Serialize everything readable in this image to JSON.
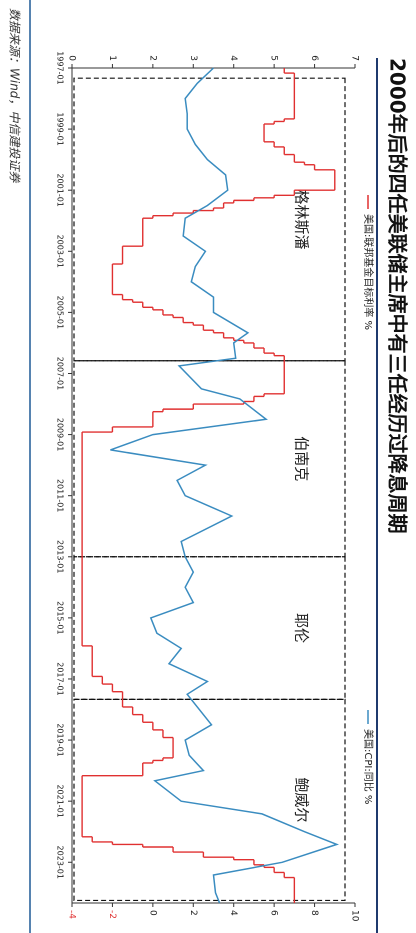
{
  "chart_data": {
    "type": "line",
    "title": "2000年后的四任美联储主席中有三任经历过降息周期",
    "source": "数据来源：Wind，中信建投证券",
    "xlim": [
      "1997-01",
      "2024-05"
    ],
    "xticks": [
      "1997-01",
      "1999-01",
      "2001-01",
      "2003-01",
      "2005-01",
      "2007-01",
      "2009-01",
      "2011-01",
      "2013-01",
      "2015-01",
      "2017-01",
      "2019-01",
      "2021-01",
      "2023-01"
    ],
    "ylim": [
      0,
      7
    ],
    "yticks": [
      0,
      1,
      2,
      3,
      4,
      5,
      6,
      7
    ],
    "y2lim": [
      -4,
      10
    ],
    "y2ticks": [
      -4,
      -2,
      0,
      2,
      4,
      6,
      8,
      10
    ],
    "periods": [
      {
        "name": "格林斯潘",
        "start": "1997-05",
        "end": "2006-08"
      },
      {
        "name": "伯南克",
        "start": "2006-08",
        "end": "2013-01"
      },
      {
        "name": "耶伦",
        "start": "2013-01",
        "end": "2017-09"
      },
      {
        "name": "鲍威尔",
        "start": "2017-09",
        "end": "2024-04"
      }
    ],
    "series": [
      {
        "name": "美国:联邦基金目标利率 %",
        "color": "#e03030",
        "axis": "y",
        "step": true,
        "x": [
          "1997-01",
          "1997-03",
          "1998-09",
          "1998-10",
          "1998-11",
          "1999-06",
          "1999-08",
          "1999-11",
          "2000-02",
          "2000-03",
          "2000-05",
          "2001-01",
          "2001-03",
          "2001-04",
          "2001-05",
          "2001-06",
          "2001-08",
          "2001-09",
          "2001-10",
          "2001-11",
          "2001-12",
          "2002-11",
          "2003-06",
          "2004-06",
          "2004-08",
          "2004-09",
          "2004-11",
          "2004-12",
          "2005-02",
          "2005-03",
          "2005-05",
          "2005-06",
          "2005-08",
          "2005-09",
          "2005-11",
          "2005-12",
          "2006-01",
          "2006-03",
          "2006-05",
          "2006-06",
          "2007-09",
          "2007-10",
          "2007-12",
          "2008-01",
          "2008-03",
          "2008-04",
          "2008-10",
          "2008-12",
          "2015-12",
          "2016-12",
          "2017-03",
          "2017-06",
          "2017-12",
          "2018-03",
          "2018-06",
          "2018-09",
          "2018-12",
          "2019-08",
          "2019-09",
          "2019-10",
          "2020-03",
          "2022-03",
          "2022-05",
          "2022-06",
          "2022-07",
          "2022-09",
          "2022-11",
          "2022-12",
          "2023-02",
          "2023-03",
          "2023-05",
          "2023-07"
        ],
        "values": [
          5.25,
          5.5,
          5.25,
          5.0,
          4.75,
          5.0,
          5.25,
          5.5,
          5.75,
          6.0,
          6.5,
          5.5,
          5.0,
          4.5,
          4.0,
          3.75,
          3.5,
          3.0,
          2.5,
          2.0,
          1.75,
          1.25,
          1.0,
          1.25,
          1.5,
          1.75,
          2.0,
          2.25,
          2.5,
          2.75,
          3.0,
          3.25,
          3.5,
          3.75,
          4.0,
          4.25,
          4.5,
          4.75,
          5.0,
          5.25,
          4.75,
          4.5,
          4.25,
          3.0,
          2.25,
          2.0,
          1.0,
          0.25,
          0.5,
          0.75,
          1.0,
          1.25,
          1.5,
          1.75,
          2.0,
          2.25,
          2.5,
          2.25,
          2.0,
          1.75,
          0.25,
          0.5,
          1.0,
          1.75,
          2.5,
          3.25,
          4.0,
          4.5,
          4.75,
          5.0,
          5.25,
          5.5
        ]
      },
      {
        "name": "美国:CPI:同比 %",
        "color": "#3a8cc0",
        "axis": "y2",
        "step": false,
        "x": [
          "1997-01",
          "1997-07",
          "1998-01",
          "1998-07",
          "1999-01",
          "1999-07",
          "2000-01",
          "2000-07",
          "2001-01",
          "2001-07",
          "2001-12",
          "2002-07",
          "2003-01",
          "2003-07",
          "2004-01",
          "2004-07",
          "2005-01",
          "2005-09",
          "2006-01",
          "2006-07",
          "2006-10",
          "2007-07",
          "2007-11",
          "2008-07",
          "2009-01",
          "2009-07",
          "2010-01",
          "2010-07",
          "2011-01",
          "2011-09",
          "2012-07",
          "2013-01",
          "2013-07",
          "2014-01",
          "2014-07",
          "2015-01",
          "2015-07",
          "2016-01",
          "2016-07",
          "2017-02",
          "2017-07",
          "2018-07",
          "2019-01",
          "2019-07",
          "2020-01",
          "2020-05",
          "2021-01",
          "2021-06",
          "2022-01",
          "2022-06",
          "2023-01",
          "2023-06",
          "2024-01",
          "2024-05"
        ],
        "values": [
          3.0,
          2.2,
          1.6,
          1.7,
          1.7,
          2.1,
          2.7,
          3.6,
          3.7,
          2.7,
          1.6,
          1.5,
          2.6,
          2.1,
          1.9,
          3.0,
          3.0,
          4.7,
          4.0,
          4.1,
          1.3,
          2.4,
          4.3,
          5.6,
          0.0,
          -2.1,
          2.6,
          1.2,
          1.6,
          3.9,
          1.4,
          1.6,
          2.0,
          1.6,
          2.0,
          -0.1,
          0.2,
          1.4,
          0.8,
          2.7,
          1.7,
          2.9,
          1.6,
          1.8,
          2.5,
          0.1,
          1.4,
          5.4,
          7.5,
          9.1,
          6.4,
          3.0,
          3.1,
          3.3
        ]
      }
    ]
  }
}
